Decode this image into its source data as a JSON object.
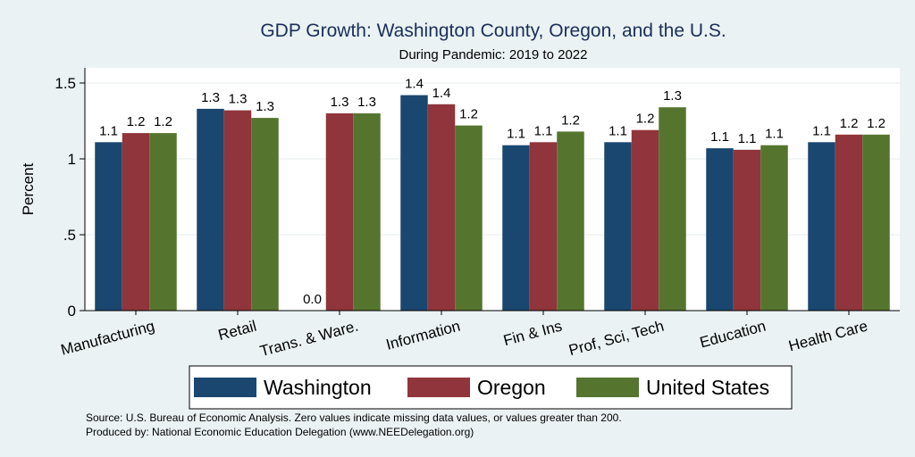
{
  "chart_data": {
    "type": "bar",
    "title": "GDP Growth: Washington County, Oregon, and the U.S.",
    "subtitle": "During Pandemic: 2019 to 2022",
    "ylabel": "Percent",
    "ylim": [
      0,
      1.6
    ],
    "yticks": [
      0,
      0.5,
      1,
      1.5
    ],
    "ytick_labels": [
      "0",
      ".5",
      "1",
      "1.5"
    ],
    "categories": [
      "Manufacturing",
      "Retail",
      "Trans. & Ware.",
      "Information",
      "Fin & Ins",
      "Prof, Sci, Tech",
      "Education",
      "Health Care"
    ],
    "series": [
      {
        "name": "Washington",
        "color": "#1a476f",
        "values": [
          1.11,
          1.33,
          0,
          1.42,
          1.09,
          1.11,
          1.07,
          1.11
        ],
        "labels": [
          "1.1",
          "1.3",
          "0.0",
          "1.4",
          "1.1",
          "1.1",
          "1.1",
          "1.1"
        ]
      },
      {
        "name": "Oregon",
        "color": "#90353b",
        "values": [
          1.17,
          1.32,
          1.3,
          1.36,
          1.11,
          1.19,
          1.06,
          1.16
        ],
        "labels": [
          "1.2",
          "1.3",
          "1.3",
          "1.4",
          "1.1",
          "1.2",
          "1.1",
          "1.2"
        ]
      },
      {
        "name": "United States",
        "color": "#55752f",
        "values": [
          1.17,
          1.27,
          1.3,
          1.22,
          1.18,
          1.34,
          1.09,
          1.16
        ],
        "labels": [
          "1.2",
          "1.3",
          "1.3",
          "1.2",
          "1.2",
          "1.3",
          "1.1",
          "1.2"
        ]
      }
    ],
    "grid": true,
    "legend_position": "bottom"
  },
  "source_note": "Source: U.S. Bureau of Economic Analysis. Zero values indicate missing data values, or values greater than 200.",
  "produced_by": "Produced by: National Economic Education Delegation (www.NEEDelegation.org)"
}
